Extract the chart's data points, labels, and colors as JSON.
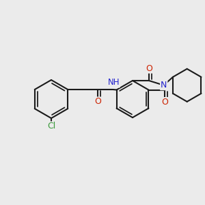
{
  "bg_color": "#ebebeb",
  "bond_color": "#1a1a1a",
  "bond_width": 1.5,
  "cl_color": "#3a9a3a",
  "o_color": "#cc2200",
  "n_color": "#2222cc",
  "font_size_atom": 8.5,
  "fig_width": 3.0,
  "fig_height": 3.0,
  "dpi": 100,
  "xlim": [
    0,
    300
  ],
  "ylim": [
    0,
    300
  ]
}
